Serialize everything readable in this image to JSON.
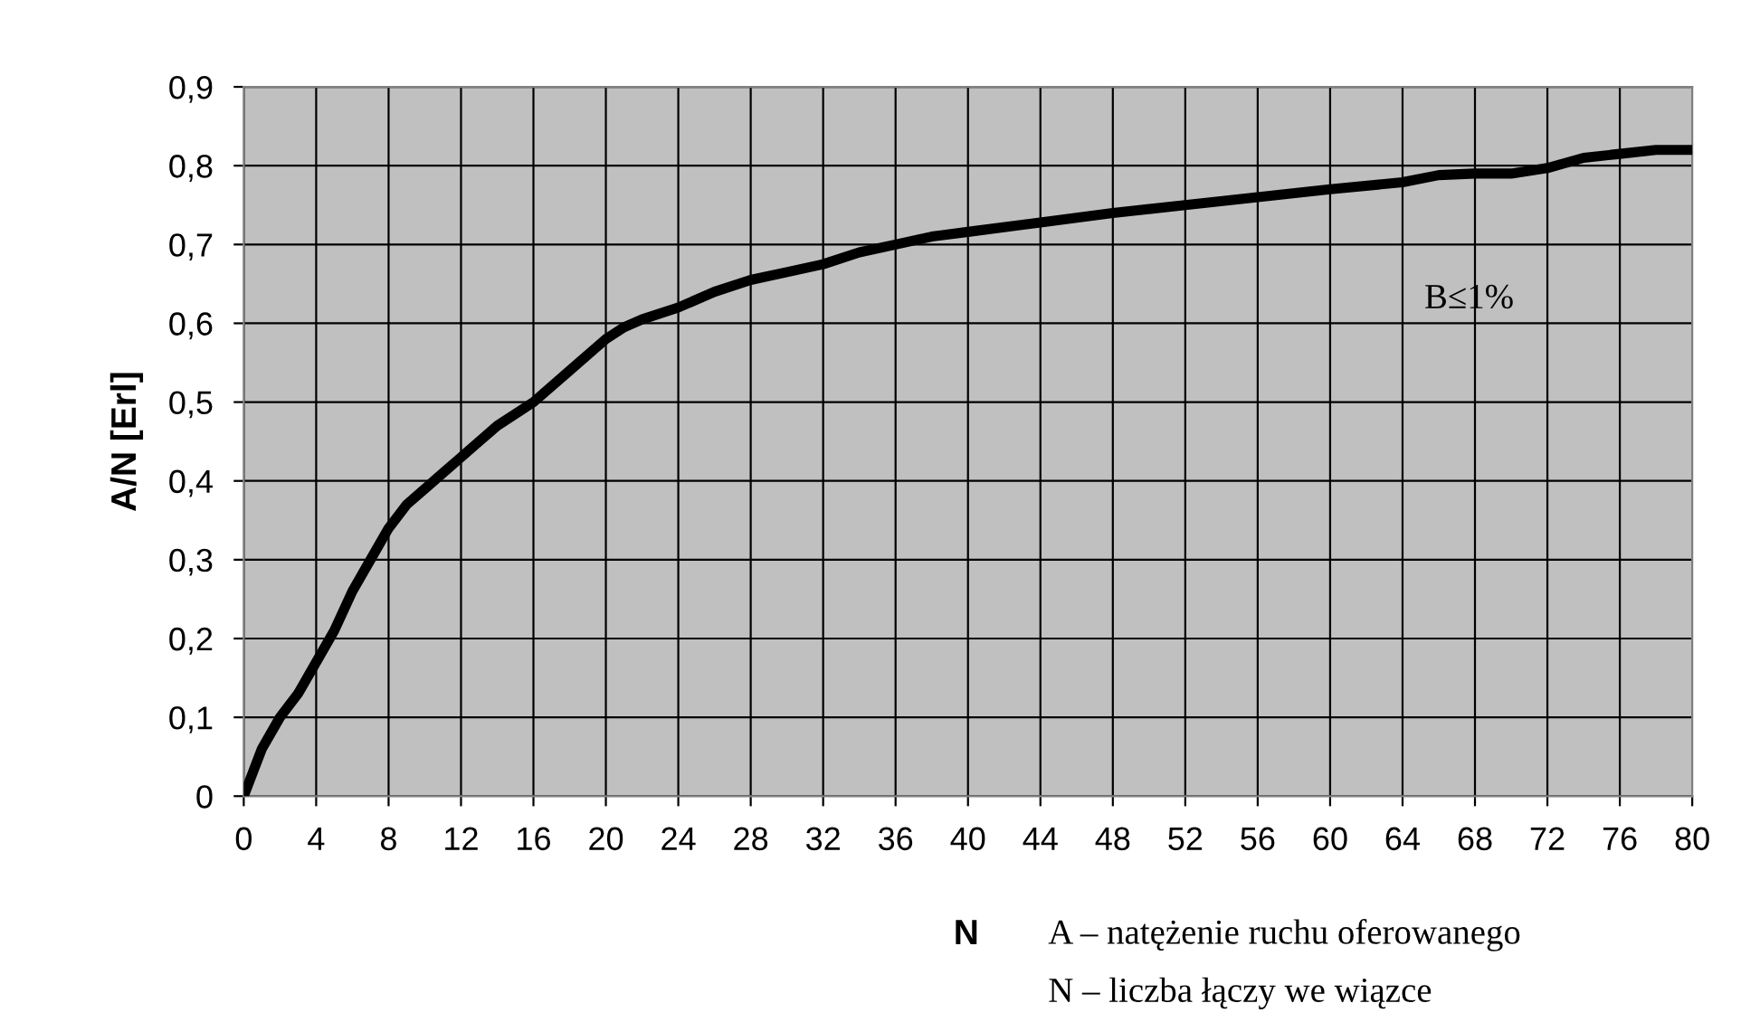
{
  "chart_data": {
    "type": "line",
    "xlabel": "N",
    "ylabel": "A/N [Erl]",
    "x": [
      0,
      1,
      2,
      3,
      4,
      5,
      6,
      7,
      8,
      9,
      10,
      11,
      12,
      13,
      14,
      16,
      18,
      20,
      21,
      22,
      24,
      26,
      28,
      30,
      32,
      34,
      36,
      38,
      40,
      44,
      48,
      52,
      56,
      60,
      64,
      66,
      68,
      70,
      72,
      74,
      76,
      78,
      80
    ],
    "series": [
      {
        "color": "#000000",
        "values": [
          0,
          0.06,
          0.1,
          0.13,
          0.17,
          0.21,
          0.26,
          0.3,
          0.34,
          0.37,
          0.39,
          0.41,
          0.43,
          0.45,
          0.47,
          0.5,
          0.54,
          0.58,
          0.595,
          0.605,
          0.62,
          0.64,
          0.655,
          0.665,
          0.675,
          0.69,
          0.7,
          0.71,
          0.716,
          0.728,
          0.74,
          0.75,
          0.76,
          0.77,
          0.779,
          0.788,
          0.79,
          0.79,
          0.797,
          0.81,
          0.815,
          0.82,
          0.82
        ]
      }
    ],
    "xlim": [
      0,
      80
    ],
    "xticks": [
      0,
      4,
      8,
      12,
      16,
      20,
      24,
      28,
      32,
      36,
      40,
      44,
      48,
      52,
      56,
      60,
      64,
      68,
      72,
      76,
      80
    ],
    "ylim": [
      0,
      0.9
    ],
    "yticks": [
      {
        "value": 0,
        "label": "0"
      },
      {
        "value": 0.1,
        "label": "0,1"
      },
      {
        "value": 0.2,
        "label": "0,2"
      },
      {
        "value": 0.3,
        "label": "0,3"
      },
      {
        "value": 0.4,
        "label": "0,4"
      },
      {
        "value": 0.5,
        "label": "0,5"
      },
      {
        "value": 0.6,
        "label": "0,6"
      },
      {
        "value": 0.7,
        "label": "0,7"
      },
      {
        "value": 0.8,
        "label": "0,8"
      },
      {
        "value": 0.9,
        "label": "0,9"
      }
    ],
    "grid": true,
    "marker": "none",
    "line_style": "solid",
    "annotations": [
      "B≤1%",
      "A – natężenie ruchu oferowanego",
      "N – liczba łączy we wiązce"
    ]
  }
}
